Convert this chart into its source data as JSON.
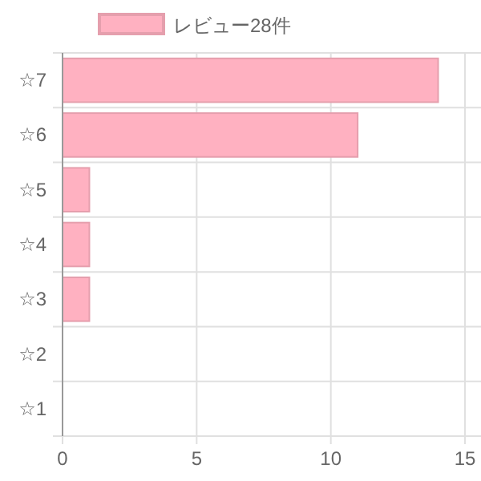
{
  "chart_data": {
    "type": "bar",
    "orientation": "horizontal",
    "categories": [
      "☆7",
      "☆6",
      "☆5",
      "☆4",
      "☆3",
      "☆2",
      "☆1"
    ],
    "series": [
      {
        "name": "レビュー28件",
        "color": "#ffb1c1",
        "values": [
          14,
          11,
          1,
          1,
          1,
          0,
          0
        ]
      }
    ],
    "xlim": [
      0,
      15
    ],
    "xticks": [
      0,
      5,
      10,
      15
    ],
    "grid": true,
    "legend": "top"
  }
}
